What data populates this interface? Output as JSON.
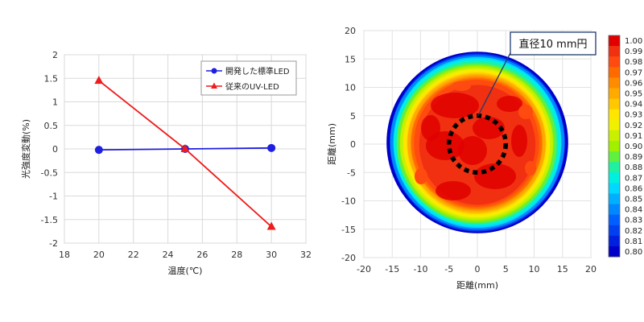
{
  "chart_data": [
    {
      "type": "line",
      "xlabel": "温度(℃)",
      "ylabel": "光強度変動(%)",
      "xlim": [
        18,
        32
      ],
      "ylim": [
        -2,
        2
      ],
      "xticks": [
        "18",
        "20",
        "22",
        "24",
        "26",
        "28",
        "30",
        "32"
      ],
      "yticks": [
        "2",
        "1.5",
        "1",
        "0.5",
        "0",
        "-0.5",
        "-1",
        "-1.5",
        "-2"
      ],
      "grid": true,
      "legend_position": "top-right",
      "series": [
        {
          "name": "開発した標準LED",
          "color": "#1f1fe0",
          "marker": "circle",
          "x": [
            20,
            25,
            30
          ],
          "y": [
            -0.02,
            0.0,
            0.02
          ]
        },
        {
          "name": "従来のUV-LED",
          "color": "#ee1c1c",
          "marker": "triangle",
          "x": [
            20,
            25,
            30
          ],
          "y": [
            1.45,
            0.0,
            -1.65
          ]
        }
      ]
    },
    {
      "type": "heatmap",
      "xlabel": "距離(mm)",
      "ylabel": "距離(mm)",
      "xlim": [
        -20,
        20
      ],
      "ylim": [
        -20,
        20
      ],
      "xticks": [
        "-20",
        "-15",
        "-10",
        "-5",
        "0",
        "5",
        "10",
        "15",
        "20"
      ],
      "yticks": [
        "20",
        "15",
        "10",
        "5",
        "0",
        "-5",
        "-10",
        "-15",
        "-20"
      ],
      "grid": true,
      "annotation": "直径10 mm円",
      "circle_diameter_mm": 10,
      "spot_radius_mm": 16,
      "colorbar": {
        "labels": [
          "1.00",
          "0.99",
          "0.98",
          "0.97",
          "0.96",
          "0.95",
          "0.94",
          "0.93",
          "0.92",
          "0.91",
          "0.90",
          "0.89",
          "0.88",
          "0.87",
          "0.86",
          "0.85",
          "0.84",
          "0.83",
          "0.82",
          "0.81",
          "0.80"
        ],
        "colors": [
          "#e00000",
          "#f03010",
          "#ff4a10",
          "#ff6a00",
          "#ff8c00",
          "#ffaa00",
          "#ffc800",
          "#ffe600",
          "#f0f000",
          "#c8f000",
          "#a0f000",
          "#60f040",
          "#20f0a0",
          "#00f0e0",
          "#00d8ff",
          "#00b0ff",
          "#0088ff",
          "#0060ff",
          "#0040f0",
          "#0020e0",
          "#0000c8"
        ]
      }
    }
  ]
}
